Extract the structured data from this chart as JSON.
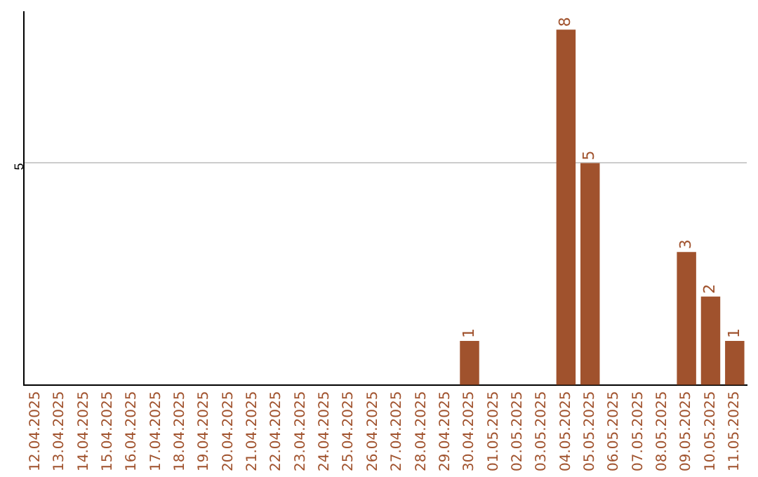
{
  "chart_data": {
    "type": "bar",
    "categories": [
      "12.04.2025",
      "13.04.2025",
      "14.04.2025",
      "15.04.2025",
      "16.04.2025",
      "17.04.2025",
      "18.04.2025",
      "19.04.2025",
      "20.04.2025",
      "21.04.2025",
      "22.04.2025",
      "23.04.2025",
      "24.04.2025",
      "25.04.2025",
      "26.04.2025",
      "27.04.2025",
      "28.04.2025",
      "29.04.2025",
      "30.04.2025",
      "01.05.2025",
      "02.05.2025",
      "03.05.2025",
      "04.05.2025",
      "05.05.2025",
      "06.05.2025",
      "07.05.2025",
      "08.05.2025",
      "09.05.2025",
      "10.05.2025",
      "11.05.2025"
    ],
    "values": [
      null,
      null,
      null,
      null,
      null,
      null,
      null,
      null,
      null,
      null,
      null,
      null,
      null,
      null,
      null,
      null,
      null,
      null,
      1,
      null,
      null,
      null,
      8,
      5,
      null,
      null,
      null,
      3,
      2,
      1
    ],
    "data_labels": true,
    "color": "#a0522d",
    "ylim": [
      0,
      8.4
    ],
    "yticks": [
      {
        "value": 0,
        "label": null
      },
      5
    ],
    "grid": "y",
    "legend": false
  }
}
